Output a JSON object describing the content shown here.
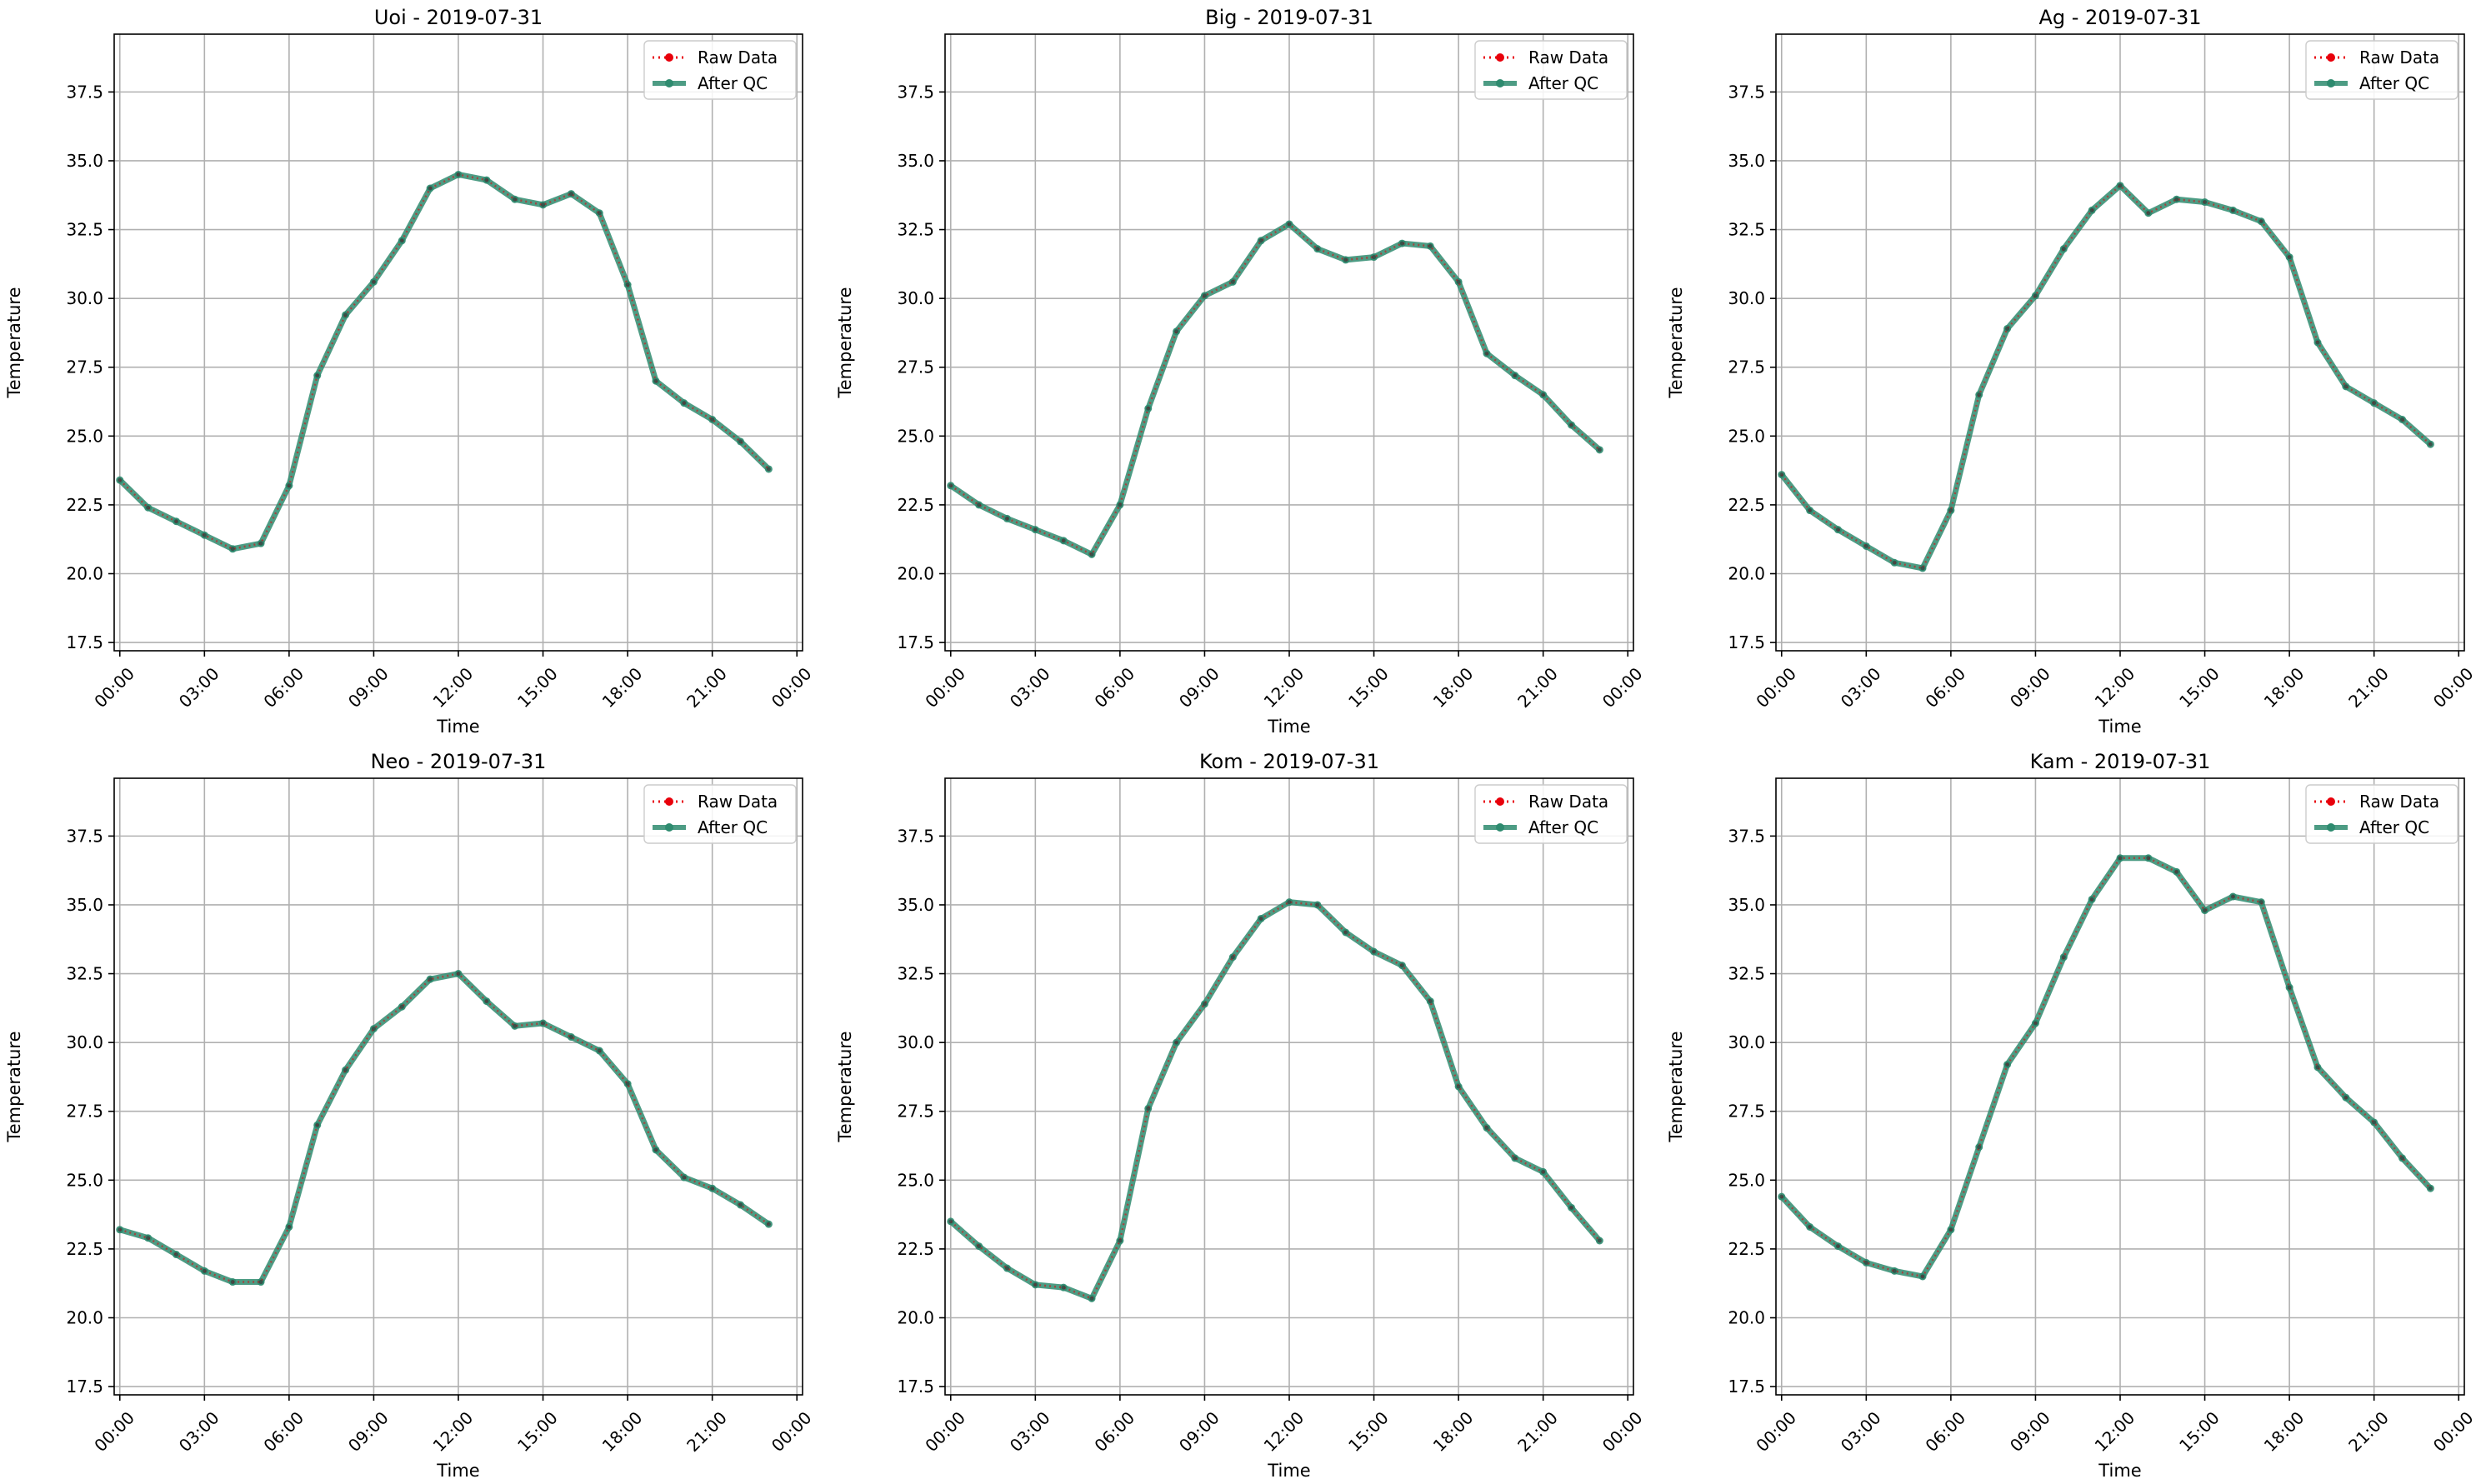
{
  "chart_data": [
    {
      "type": "line",
      "title": "Uoi - 2019-07-31",
      "xlabel": "Time",
      "ylabel": "Temperature",
      "xticks": [
        "00:00",
        "03:00",
        "06:00",
        "09:00",
        "12:00",
        "15:00",
        "18:00",
        "21:00",
        "00:00"
      ],
      "yticks": [
        "17.5",
        "20.0",
        "22.5",
        "25.0",
        "27.5",
        "30.0",
        "32.5",
        "35.0",
        "37.5"
      ],
      "ylim": [
        17.2,
        39.6
      ],
      "xlim_hours": [
        -0.2,
        24.2
      ],
      "grid": true,
      "legend": "top-right",
      "x_hours": [
        0,
        1,
        2,
        3,
        4,
        5,
        6,
        7,
        8,
        9,
        10,
        11,
        12,
        13,
        14,
        15,
        16,
        17,
        18,
        19,
        20,
        21,
        22,
        23
      ],
      "series": [
        {
          "name": "Raw Data",
          "values": [
            23.4,
            22.4,
            21.9,
            21.4,
            20.9,
            21.1,
            23.2,
            27.2,
            29.4,
            30.6,
            32.1,
            34.0,
            34.5,
            34.3,
            33.6,
            33.4,
            33.8,
            33.1,
            30.5,
            27.0,
            26.2,
            25.6,
            24.8,
            23.8
          ]
        },
        {
          "name": "After QC",
          "values": [
            23.4,
            22.4,
            21.9,
            21.4,
            20.9,
            21.1,
            23.2,
            27.2,
            29.4,
            30.6,
            32.1,
            34.0,
            34.5,
            34.3,
            33.6,
            33.4,
            33.8,
            33.1,
            30.5,
            27.0,
            26.2,
            25.6,
            24.8,
            23.8
          ]
        }
      ]
    },
    {
      "type": "line",
      "title": "Big - 2019-07-31",
      "xlabel": "Time",
      "ylabel": "Temperature",
      "xticks": [
        "00:00",
        "03:00",
        "06:00",
        "09:00",
        "12:00",
        "15:00",
        "18:00",
        "21:00",
        "00:00"
      ],
      "yticks": [
        "17.5",
        "20.0",
        "22.5",
        "25.0",
        "27.5",
        "30.0",
        "32.5",
        "35.0",
        "37.5"
      ],
      "ylim": [
        17.2,
        39.6
      ],
      "xlim_hours": [
        -0.2,
        24.2
      ],
      "grid": true,
      "legend": "top-right",
      "x_hours": [
        0,
        1,
        2,
        3,
        4,
        5,
        6,
        7,
        8,
        9,
        10,
        11,
        12,
        13,
        14,
        15,
        16,
        17,
        18,
        19,
        20,
        21,
        22,
        23
      ],
      "series": [
        {
          "name": "Raw Data",
          "values": [
            23.2,
            22.5,
            22.0,
            21.6,
            21.2,
            20.7,
            22.5,
            26.0,
            28.8,
            30.1,
            30.6,
            32.1,
            32.7,
            31.8,
            31.4,
            31.5,
            32.0,
            31.9,
            30.6,
            28.0,
            27.2,
            26.5,
            25.4,
            24.5
          ]
        },
        {
          "name": "After QC",
          "values": [
            23.2,
            22.5,
            22.0,
            21.6,
            21.2,
            20.7,
            22.5,
            26.0,
            28.8,
            30.1,
            30.6,
            32.1,
            32.7,
            31.8,
            31.4,
            31.5,
            32.0,
            31.9,
            30.6,
            28.0,
            27.2,
            26.5,
            25.4,
            24.5
          ]
        }
      ]
    },
    {
      "type": "line",
      "title": "Ag - 2019-07-31",
      "xlabel": "Time",
      "ylabel": "Temperature",
      "xticks": [
        "00:00",
        "03:00",
        "06:00",
        "09:00",
        "12:00",
        "15:00",
        "18:00",
        "21:00",
        "00:00"
      ],
      "yticks": [
        "17.5",
        "20.0",
        "22.5",
        "25.0",
        "27.5",
        "30.0",
        "32.5",
        "35.0",
        "37.5"
      ],
      "ylim": [
        17.2,
        39.6
      ],
      "xlim_hours": [
        -0.2,
        24.2
      ],
      "grid": true,
      "legend": "top-right",
      "x_hours": [
        0,
        1,
        2,
        3,
        4,
        5,
        6,
        7,
        8,
        9,
        10,
        11,
        12,
        13,
        14,
        15,
        16,
        17,
        18,
        19,
        20,
        21,
        22,
        23
      ],
      "series": [
        {
          "name": "Raw Data",
          "values": [
            23.6,
            22.3,
            21.6,
            21.0,
            20.4,
            20.2,
            22.3,
            26.5,
            28.9,
            30.1,
            31.8,
            33.2,
            34.1,
            33.1,
            33.6,
            33.5,
            33.2,
            32.8,
            31.5,
            28.4,
            26.8,
            26.2,
            25.6,
            24.7
          ]
        },
        {
          "name": "After QC",
          "values": [
            23.6,
            22.3,
            21.6,
            21.0,
            20.4,
            20.2,
            22.3,
            26.5,
            28.9,
            30.1,
            31.8,
            33.2,
            34.1,
            33.1,
            33.6,
            33.5,
            33.2,
            32.8,
            31.5,
            28.4,
            26.8,
            26.2,
            25.6,
            24.7
          ]
        }
      ]
    },
    {
      "type": "line",
      "title": "Neo - 2019-07-31",
      "xlabel": "Time",
      "ylabel": "Temperature",
      "xticks": [
        "00:00",
        "03:00",
        "06:00",
        "09:00",
        "12:00",
        "15:00",
        "18:00",
        "21:00",
        "00:00"
      ],
      "yticks": [
        "17.5",
        "20.0",
        "22.5",
        "25.0",
        "27.5",
        "30.0",
        "32.5",
        "35.0",
        "37.5"
      ],
      "ylim": [
        17.2,
        39.6
      ],
      "xlim_hours": [
        -0.2,
        24.2
      ],
      "grid": true,
      "legend": "top-right",
      "x_hours": [
        0,
        1,
        2,
        3,
        4,
        5,
        6,
        7,
        8,
        9,
        10,
        11,
        12,
        13,
        14,
        15,
        16,
        17,
        18,
        19,
        20,
        21,
        22,
        23
      ],
      "series": [
        {
          "name": "Raw Data",
          "values": [
            23.2,
            22.9,
            22.3,
            21.7,
            21.3,
            21.3,
            23.3,
            27.0,
            29.0,
            30.5,
            31.3,
            32.3,
            32.5,
            31.5,
            30.6,
            30.7,
            30.2,
            29.7,
            28.5,
            26.1,
            25.1,
            24.7,
            24.1,
            23.4
          ]
        },
        {
          "name": "After QC",
          "values": [
            23.2,
            22.9,
            22.3,
            21.7,
            21.3,
            21.3,
            23.3,
            27.0,
            29.0,
            30.5,
            31.3,
            32.3,
            32.5,
            31.5,
            30.6,
            30.7,
            30.2,
            29.7,
            28.5,
            26.1,
            25.1,
            24.7,
            24.1,
            23.4
          ]
        }
      ]
    },
    {
      "type": "line",
      "title": "Kom - 2019-07-31",
      "xlabel": "Time",
      "ylabel": "Temperature",
      "xticks": [
        "00:00",
        "03:00",
        "06:00",
        "09:00",
        "12:00",
        "15:00",
        "18:00",
        "21:00",
        "00:00"
      ],
      "yticks": [
        "17.5",
        "20.0",
        "22.5",
        "25.0",
        "27.5",
        "30.0",
        "32.5",
        "35.0",
        "37.5"
      ],
      "ylim": [
        17.2,
        39.6
      ],
      "xlim_hours": [
        -0.2,
        24.2
      ],
      "grid": true,
      "legend": "top-right",
      "x_hours": [
        0,
        1,
        2,
        3,
        4,
        5,
        6,
        7,
        8,
        9,
        10,
        11,
        12,
        13,
        14,
        15,
        16,
        17,
        18,
        19,
        20,
        21,
        22,
        23
      ],
      "series": [
        {
          "name": "Raw Data",
          "values": [
            23.5,
            22.6,
            21.8,
            21.2,
            21.1,
            20.7,
            22.8,
            27.6,
            30.0,
            31.4,
            33.1,
            34.5,
            35.1,
            35.0,
            34.0,
            33.3,
            32.8,
            31.5,
            28.4,
            26.9,
            25.8,
            25.3,
            24.0,
            22.8
          ]
        },
        {
          "name": "After QC",
          "values": [
            23.5,
            22.6,
            21.8,
            21.2,
            21.1,
            20.7,
            22.8,
            27.6,
            30.0,
            31.4,
            33.1,
            34.5,
            35.1,
            35.0,
            34.0,
            33.3,
            32.8,
            31.5,
            28.4,
            26.9,
            25.8,
            25.3,
            24.0,
            22.8
          ]
        }
      ]
    },
    {
      "type": "line",
      "title": "Kam - 2019-07-31",
      "xlabel": "Time",
      "ylabel": "Temperature",
      "xticks": [
        "00:00",
        "03:00",
        "06:00",
        "09:00",
        "12:00",
        "15:00",
        "18:00",
        "21:00",
        "00:00"
      ],
      "yticks": [
        "17.5",
        "20.0",
        "22.5",
        "25.0",
        "27.5",
        "30.0",
        "32.5",
        "35.0",
        "37.5"
      ],
      "ylim": [
        17.2,
        39.6
      ],
      "xlim_hours": [
        -0.2,
        24.2
      ],
      "grid": true,
      "legend": "top-right",
      "x_hours": [
        0,
        1,
        2,
        3,
        4,
        5,
        6,
        7,
        8,
        9,
        10,
        11,
        12,
        13,
        14,
        15,
        16,
        17,
        18,
        19,
        20,
        21,
        22,
        23
      ],
      "series": [
        {
          "name": "Raw Data",
          "values": [
            24.4,
            23.3,
            22.6,
            22.0,
            21.7,
            21.5,
            23.2,
            26.2,
            29.2,
            30.7,
            33.1,
            35.2,
            36.7,
            36.7,
            36.2,
            34.8,
            35.3,
            35.1,
            32.0,
            29.1,
            28.0,
            27.1,
            25.8,
            24.7
          ]
        },
        {
          "name": "After QC",
          "values": [
            24.4,
            23.3,
            22.6,
            22.0,
            21.7,
            21.5,
            23.2,
            26.2,
            29.2,
            30.7,
            33.1,
            35.2,
            36.7,
            36.7,
            36.2,
            34.8,
            35.3,
            35.1,
            32.0,
            29.1,
            28.0,
            27.1,
            25.8,
            24.7
          ]
        }
      ]
    }
  ],
  "colors": {
    "raw": "#e8000b",
    "qc": "#2e8b6f",
    "grid": "#b0b0b0",
    "axes": "#000000"
  }
}
